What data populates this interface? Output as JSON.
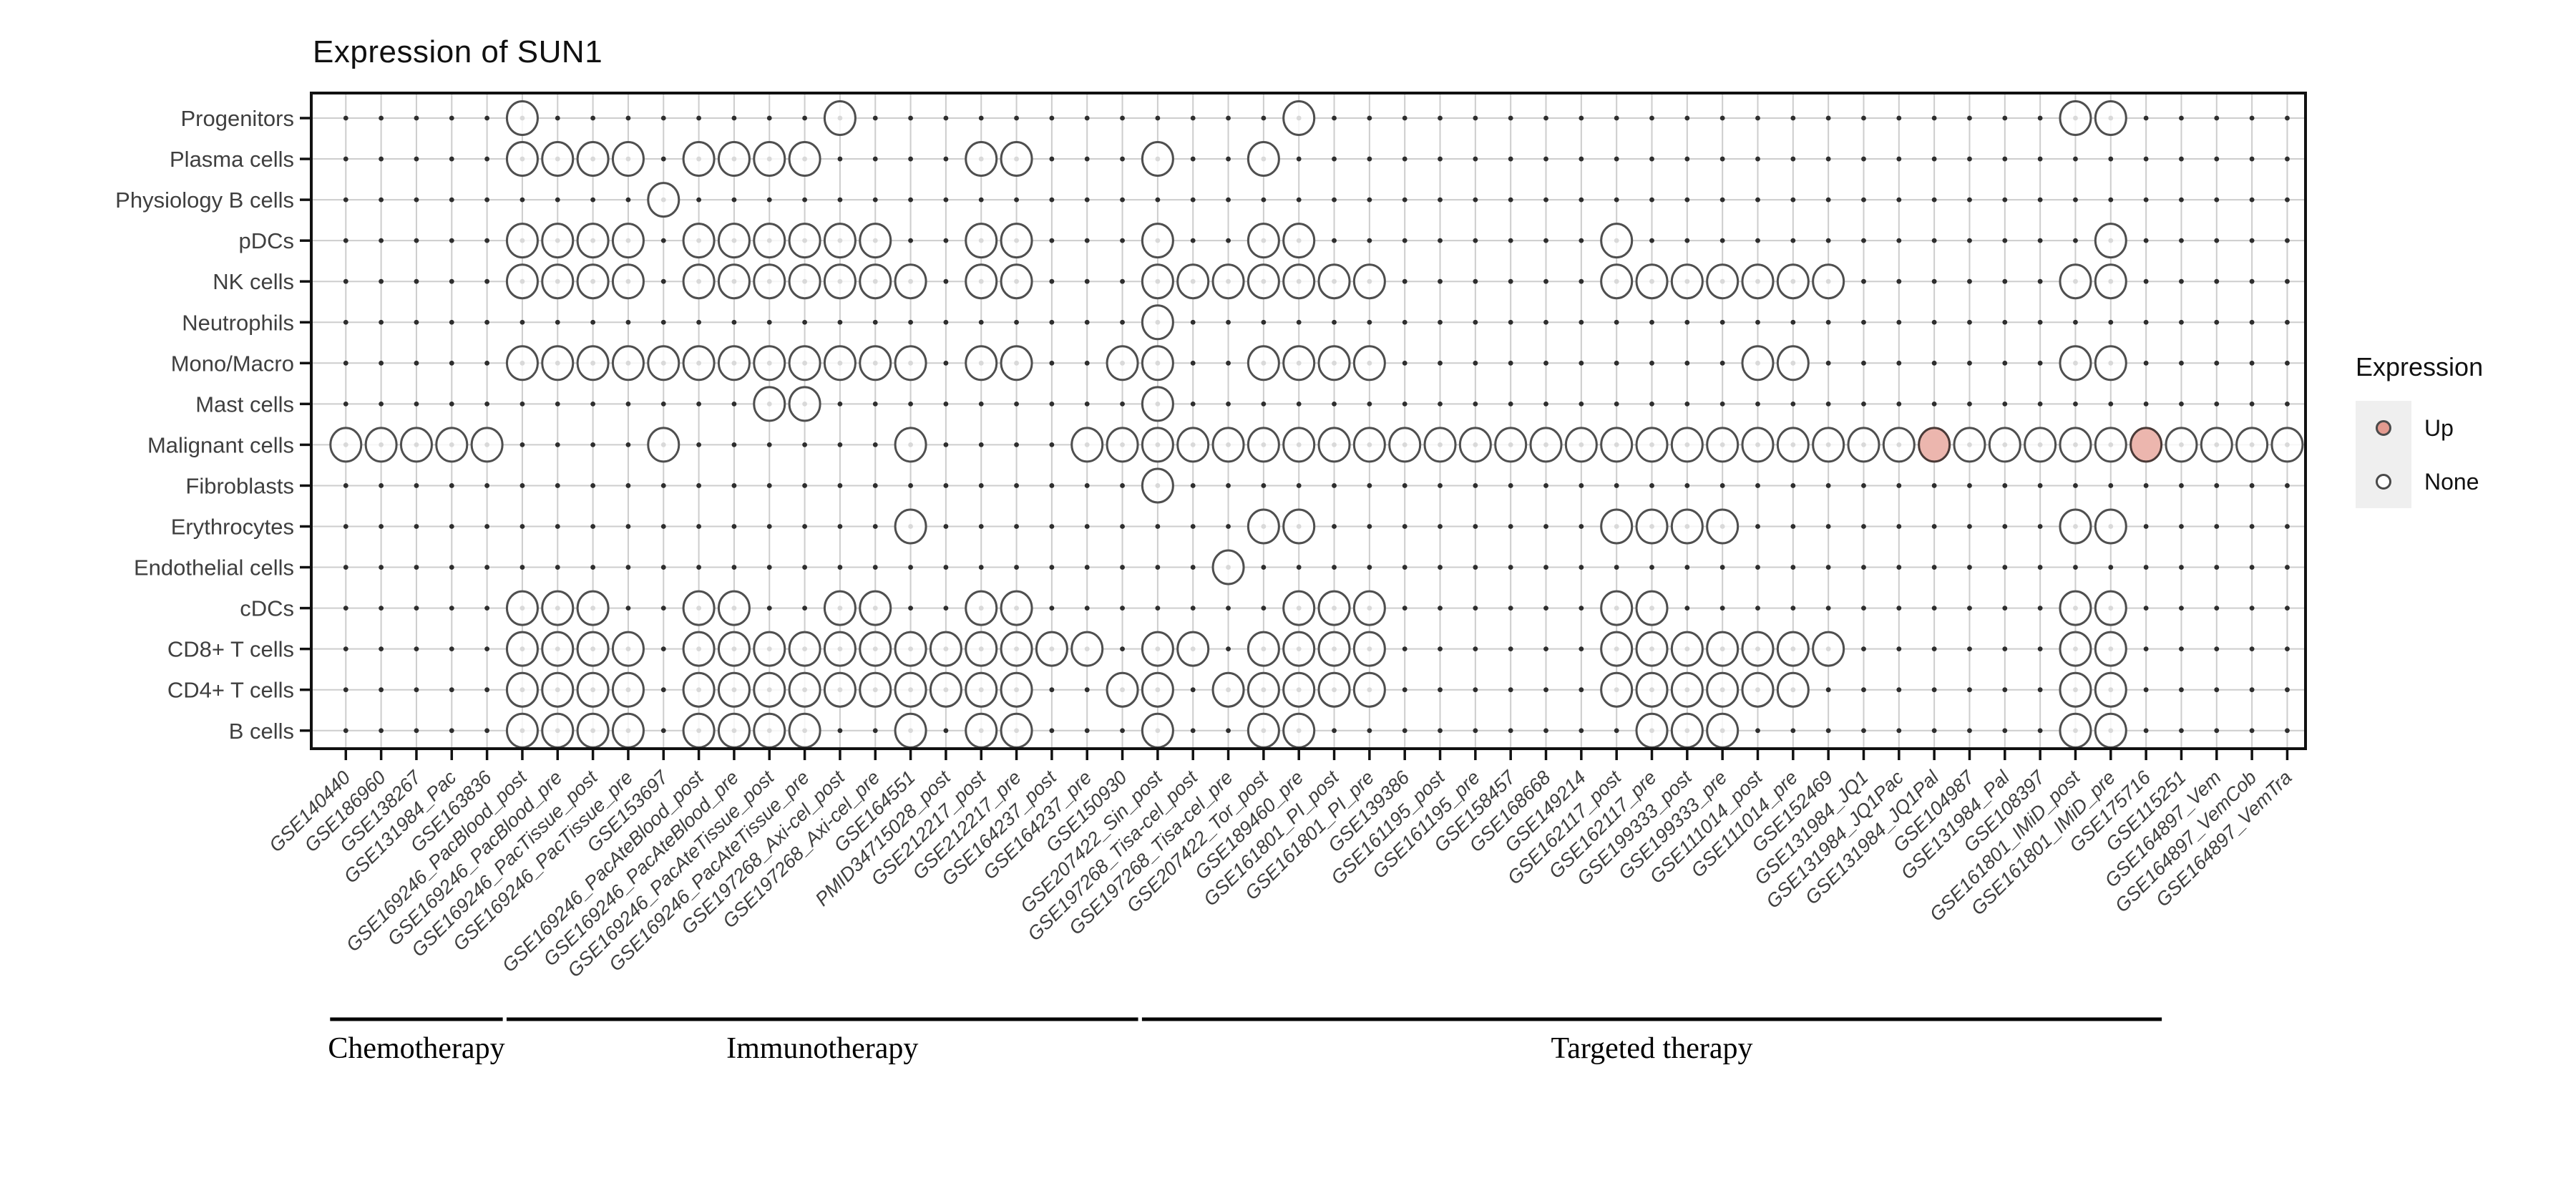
{
  "page": {
    "title": "Expression of SUN1"
  },
  "legend": {
    "title": "Expression",
    "items": [
      {
        "label": "Up",
        "color": "#e39a8f"
      },
      {
        "label": "None",
        "color": "#ffffff"
      }
    ]
  },
  "chart_data": {
    "type": "scatter",
    "title": "Expression of SUN1",
    "legend_position": "right",
    "grid": true,
    "colors": {
      "up_fill": "#ecb6ae",
      "none_fill": "#ffffff",
      "circle_stroke": "#4f4f4f",
      "grid_line": "#cdcdcd",
      "grid_dot": "#2e2e2e",
      "panel_border": "#111111",
      "axis_text": "#3f3f3f",
      "group_text": "#000000"
    },
    "y_axis": {
      "label": "",
      "tick_labels": [
        "Progenitors",
        "Plasma cells",
        "Physiology B cells",
        "pDCs",
        "NK cells",
        "Neutrophils",
        "Mono/Macro",
        "Mast cells",
        "Malignant cells",
        "Fibroblasts",
        "Erythrocytes",
        "Endothelial cells",
        "cDCs",
        "CD8+ T cells",
        "CD4+ T cells",
        "B cells"
      ]
    },
    "x_axis": {
      "label": "",
      "tick_labels": [
        "GSE140440",
        "GSE186960",
        "GSE138267",
        "GSE131984_Pac",
        "GSE163836",
        "GSE169246_PacBlood_post",
        "GSE169246_PacBlood_pre",
        "GSE169246_PacTissue_post",
        "GSE169246_PacTissue_pre",
        "GSE153697",
        "GSE169246_PacAteBlood_post",
        "GSE169246_PacAteBlood_pre",
        "GSE169246_PacAteTissue_post",
        "GSE169246_PacAteTissue_pre",
        "GSE197268_Axi-cel_post",
        "GSE197268_Axi-cel_pre",
        "GSE164551",
        "PMID34715028_post",
        "GSE212217_post",
        "GSE212217_pre",
        "GSE164237_post",
        "GSE164237_pre",
        "GSE150930",
        "GSE207422_Sin_post",
        "GSE197268_Tisa-cel_post",
        "GSE197268_Tisa-cel_pre",
        "GSE207422_Tor_post",
        "GSE189460_pre",
        "GSE161801_PI_post",
        "GSE161801_PI_pre",
        "GSE139386",
        "GSE161195_post",
        "GSE161195_pre",
        "GSE158457",
        "GSE168668",
        "GSE149214",
        "GSE162117_post",
        "GSE162117_pre",
        "GSE199333_post",
        "GSE199333_pre",
        "GSE111014_post",
        "GSE111014_pre",
        "GSE152469",
        "GSE131984_JQ1",
        "GSE131984_JQ1Pac",
        "GSE131984_JQ1Pal",
        "GSE104987",
        "GSE131984_Pal",
        "GSE108397",
        "GSE161801_IMiD_post",
        "GSE161801_IMiD_pre",
        "GSE175716",
        "GSE115251",
        "GSE164897_Vem",
        "GSE164897_VemCob",
        "GSE164897_VemTra"
      ]
    },
    "groups": [
      {
        "label": "Chemotherapy",
        "from_col": 1,
        "to_col": 5
      },
      {
        "label": "Immunotherapy",
        "from_col": 6,
        "to_col": 23
      },
      {
        "label": "Targeted therapy",
        "from_col": 24,
        "to_col": 52
      }
    ],
    "matrix": {
      "rows": [
        {
          "row": "Progenitors",
          "none": [
            6,
            15,
            28,
            50,
            51
          ],
          "up": []
        },
        {
          "row": "Plasma cells",
          "none": [
            6,
            7,
            8,
            9,
            11,
            12,
            13,
            14,
            19,
            20,
            24,
            27
          ],
          "up": []
        },
        {
          "row": "Physiology B cells",
          "none": [
            10
          ],
          "up": []
        },
        {
          "row": "pDCs",
          "none": [
            6,
            7,
            8,
            9,
            11,
            12,
            13,
            14,
            15,
            16,
            19,
            20,
            24,
            27,
            28,
            37,
            51
          ],
          "up": []
        },
        {
          "row": "NK cells",
          "none": [
            6,
            7,
            8,
            9,
            11,
            12,
            13,
            14,
            15,
            16,
            17,
            19,
            20,
            24,
            25,
            26,
            27,
            28,
            29,
            30,
            37,
            38,
            39,
            40,
            41,
            42,
            43,
            50,
            51
          ],
          "up": []
        },
        {
          "row": "Neutrophils",
          "none": [
            24
          ],
          "up": []
        },
        {
          "row": "Mono/Macro",
          "none": [
            6,
            7,
            8,
            9,
            10,
            11,
            12,
            13,
            14,
            15,
            16,
            17,
            19,
            20,
            23,
            24,
            27,
            28,
            29,
            30,
            41,
            42,
            50,
            51
          ],
          "up": []
        },
        {
          "row": "Mast cells",
          "none": [
            13,
            14,
            24
          ],
          "up": []
        },
        {
          "row": "Malignant cells",
          "none": [
            1,
            2,
            3,
            4,
            5,
            10,
            17,
            22,
            23,
            24,
            25,
            26,
            27,
            28,
            29,
            30,
            31,
            32,
            33,
            34,
            35,
            36,
            37,
            38,
            39,
            40,
            41,
            42,
            43,
            44,
            45,
            47,
            48,
            49,
            50,
            51,
            53,
            54,
            55,
            56
          ],
          "up": [
            46,
            52
          ]
        },
        {
          "row": "Fibroblasts",
          "none": [
            24
          ],
          "up": []
        },
        {
          "row": "Erythrocytes",
          "none": [
            17,
            27,
            28,
            37,
            38,
            39,
            40,
            50,
            51
          ],
          "up": []
        },
        {
          "row": "Endothelial cells",
          "none": [
            26
          ],
          "up": []
        },
        {
          "row": "cDCs",
          "none": [
            6,
            7,
            8,
            11,
            12,
            15,
            16,
            19,
            20,
            28,
            29,
            30,
            37,
            38,
            50,
            51
          ],
          "up": []
        },
        {
          "row": "CD8+ T cells",
          "none": [
            6,
            7,
            8,
            9,
            11,
            12,
            13,
            14,
            15,
            16,
            17,
            18,
            19,
            20,
            21,
            22,
            24,
            25,
            27,
            28,
            29,
            30,
            37,
            38,
            39,
            40,
            41,
            42,
            43,
            50,
            51
          ],
          "up": []
        },
        {
          "row": "CD4+ T cells",
          "none": [
            6,
            7,
            8,
            9,
            11,
            12,
            13,
            14,
            15,
            16,
            17,
            18,
            19,
            20,
            23,
            24,
            26,
            27,
            28,
            29,
            30,
            37,
            38,
            39,
            40,
            41,
            42,
            50,
            51
          ],
          "up": []
        },
        {
          "row": "B cells",
          "none": [
            6,
            7,
            8,
            9,
            11,
            12,
            13,
            14,
            17,
            19,
            20,
            24,
            27,
            28,
            38,
            39,
            40,
            50,
            51
          ],
          "up": []
        }
      ]
    }
  }
}
